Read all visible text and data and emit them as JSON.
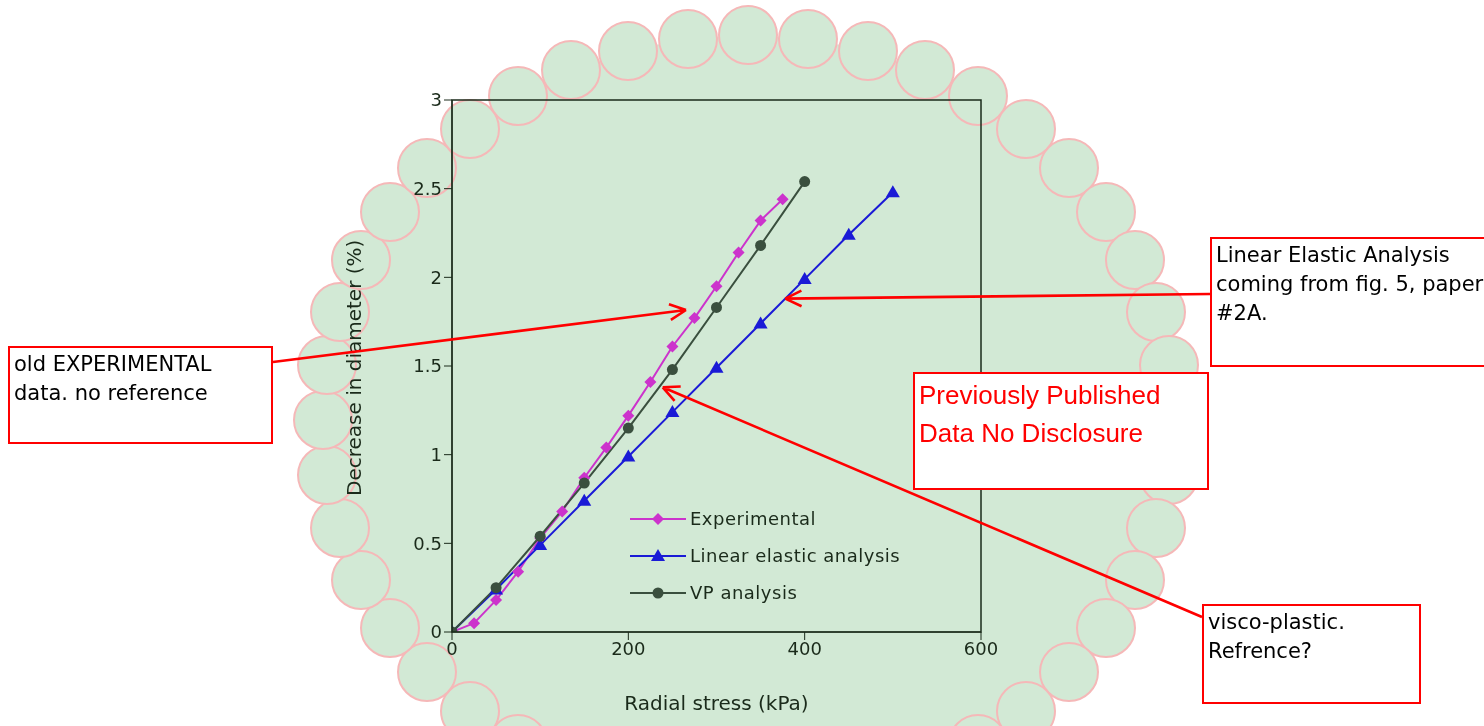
{
  "chart_data": {
    "type": "line",
    "xlabel": "Radial stress (kPa)",
    "ylabel": "Decrease in diameter  (%)",
    "xlim": [
      0,
      600
    ],
    "xticks": [
      0,
      200,
      400,
      600
    ],
    "ylim": [
      0,
      3
    ],
    "yticks": [
      0,
      0.5,
      1,
      1.5,
      2,
      2.5,
      3
    ],
    "grid": false,
    "legend": "bottom right",
    "line_style": "solid",
    "series": [
      {
        "name": "Experimental",
        "color": "#cc33cc",
        "marker": "diamond",
        "x": [
          0,
          25,
          50,
          75,
          100,
          125,
          150,
          175,
          200,
          225,
          250,
          275,
          300,
          325,
          350,
          375
        ],
        "values": [
          0,
          0.05,
          0.18,
          0.34,
          0.53,
          0.68,
          0.87,
          1.04,
          1.22,
          1.41,
          1.61,
          1.77,
          1.95,
          2.14,
          2.32,
          2.44
        ]
      },
      {
        "name": "Linear elastic analysis",
        "color": "#1a1ad6",
        "marker": "triangle",
        "x": [
          0,
          50,
          100,
          150,
          200,
          250,
          300,
          350,
          400,
          450,
          500
        ],
        "values": [
          0,
          0.24,
          0.49,
          0.74,
          0.99,
          1.24,
          1.49,
          1.74,
          1.99,
          2.24,
          2.48
        ]
      },
      {
        "name": "VP analysis",
        "color": "#3a4f3e",
        "marker": "circle",
        "x": [
          0,
          50,
          100,
          150,
          200,
          250,
          300,
          350,
          400
        ],
        "values": [
          0,
          0.25,
          0.54,
          0.84,
          1.15,
          1.48,
          1.83,
          2.18,
          2.54
        ]
      }
    ],
    "annotations": [
      "old EXPERIMENTAL data. no reference",
      {
        "text": "Linear Elastic Analysis coming from fig. 5, paper #2A.",
        "x": 378,
        "y": 1.88
      },
      "Previously Published Data No Disclosure",
      {
        "text": "visco-plastic. Refrence?",
        "x": 239,
        "y": 1.38
      }
    ]
  }
}
